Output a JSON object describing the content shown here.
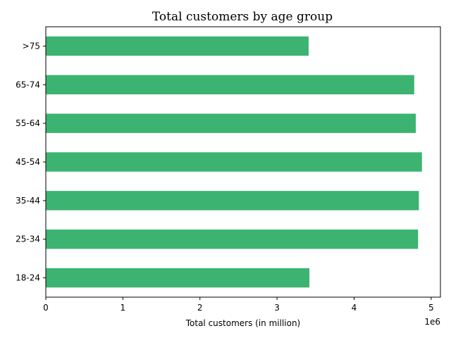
{
  "chart_data": {
    "type": "bar",
    "orientation": "horizontal",
    "title": "Total customers by age group",
    "xlabel": "Total customers (in million)",
    "ylabel": "",
    "x_offset_label": "1e6",
    "categories": [
      "18-24",
      "25-34",
      "35-44",
      "45-54",
      "55-64",
      "65-74",
      ">75"
    ],
    "values": [
      3420000,
      4830000,
      4840000,
      4880000,
      4800000,
      4780000,
      3410000
    ],
    "xlim": [
      0,
      5.12
    ],
    "xticks": [
      0,
      1,
      2,
      3,
      4,
      5
    ],
    "xtick_labels": [
      "0",
      "1",
      "2",
      "3",
      "4",
      "5"
    ],
    "bar_color": "#3cb371",
    "grid": false,
    "legend": "none"
  }
}
